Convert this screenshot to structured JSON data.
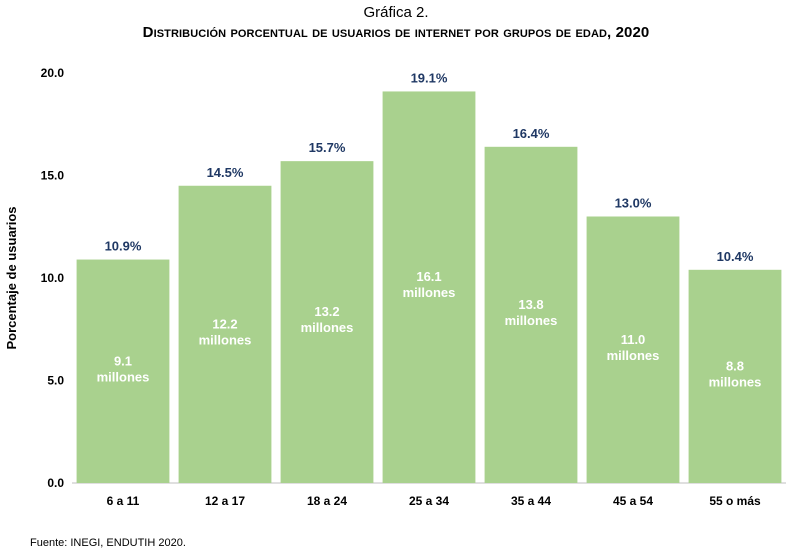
{
  "chart_data": {
    "type": "bar",
    "supertitle": "Gráfica 2.",
    "title": "Distribución porcentual de usuarios de internet por grupos de edad, 2020",
    "ylabel": "Porcentaje de usuarios",
    "xlabel": "",
    "ylim": [
      0,
      20
    ],
    "yticks": [
      "0.0",
      "5.0",
      "10.0",
      "15.0",
      "20.0"
    ],
    "categories": [
      "6 a 11",
      "12 a 17",
      "18 a 24",
      "25 a 34",
      "35 a 44",
      "45 a 54",
      "55 o más"
    ],
    "values": [
      10.9,
      14.5,
      15.7,
      19.1,
      16.4,
      13.0,
      10.4
    ],
    "value_labels": [
      "10.9%",
      "14.5%",
      "15.7%",
      "19.1%",
      "16.4%",
      "13.0%",
      "10.4%"
    ],
    "inner_labels": [
      [
        "9.1",
        "millones"
      ],
      [
        "12.2",
        "millones"
      ],
      [
        "13.2",
        "millones"
      ],
      [
        "16.1",
        "millones"
      ],
      [
        "13.8",
        "millones"
      ],
      [
        "11.0",
        "millones"
      ],
      [
        "8.8",
        "millones"
      ]
    ],
    "bar_color": "#a9d18e",
    "value_label_color": "#1f3864",
    "grid": false,
    "source": "Fuente: INEGI, ENDUTIH 2020."
  }
}
